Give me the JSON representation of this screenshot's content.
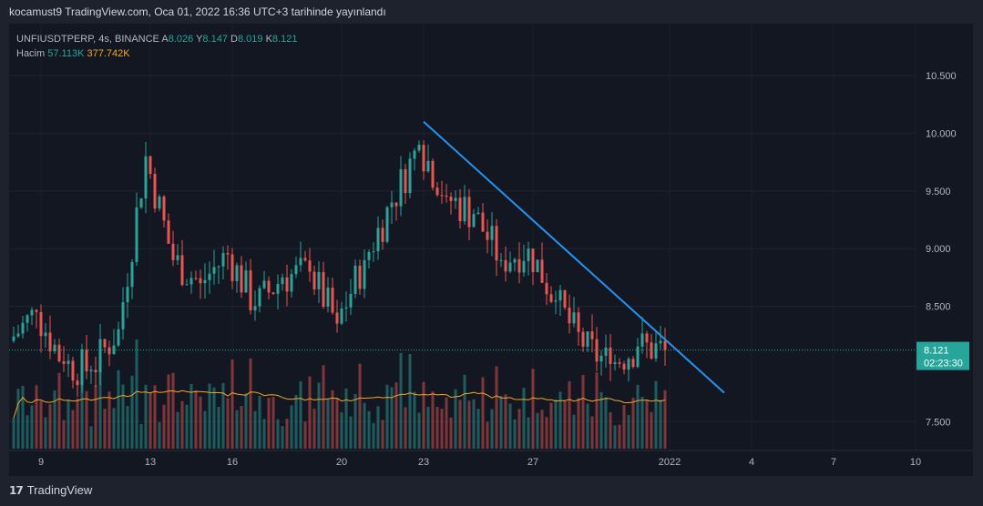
{
  "header": {
    "published": "kocamust9 TradingView.com, Oca 01, 2022 16:36 UTC+3 tarihinde yayınlandı"
  },
  "legend": {
    "symbol": "UNFIUSDTPERP, 4s, BINANCE",
    "o_label": "A",
    "o": "8.026",
    "h_label": "Y",
    "h": "8.147",
    "l_label": "D",
    "l": "8.019",
    "c_label": "K",
    "c": "8.121",
    "vol_label": "Hacim",
    "vol": "57.113K",
    "vol_ma": "377.742K"
  },
  "price_tag": {
    "price": "8.121",
    "countdown": "02:23:30"
  },
  "footer": {
    "brand": "TradingView"
  },
  "colors": {
    "up": "#26a69a",
    "down": "#ef5350",
    "trendline": "#2196f3",
    "vol_ma": "#f5a623",
    "background": "#131722"
  },
  "chart_data": {
    "type": "candlestick",
    "symbol": "UNFIUSDTPERP",
    "interval": "4s",
    "exchange": "BINANCE",
    "ylim": [
      7.25,
      10.95
    ],
    "y_ticks": [
      "10.500",
      "10.000",
      "9.500",
      "9.000",
      "8.500",
      "7.500"
    ],
    "x_ticks": [
      "9",
      "13",
      "16",
      "20",
      "23",
      "27",
      "2022",
      "4",
      "7",
      "10"
    ],
    "x_tick_values": [
      "2021-12-09",
      "2021-12-13",
      "2021-12-16",
      "2021-12-20",
      "2021-12-23",
      "2021-12-27",
      "2022-01-01",
      "2022-01-04",
      "2022-01-07",
      "2022-01-10"
    ],
    "last_price": 8.121,
    "close_series": [
      {
        "date": "2021-12-08",
        "close": 8.2
      },
      {
        "date": "2021-12-09",
        "close": 8.45
      },
      {
        "date": "2021-12-10",
        "close": 8.0
      },
      {
        "date": "2021-12-11",
        "close": 7.95
      },
      {
        "date": "2021-12-12",
        "close": 8.3
      },
      {
        "date": "2021-12-13",
        "close": 9.8
      },
      {
        "date": "2021-12-14",
        "close": 8.9
      },
      {
        "date": "2021-12-15",
        "close": 8.7
      },
      {
        "date": "2021-12-16",
        "close": 8.95
      },
      {
        "date": "2021-12-17",
        "close": 8.5
      },
      {
        "date": "2021-12-18",
        "close": 8.75
      },
      {
        "date": "2021-12-19",
        "close": 8.8
      },
      {
        "date": "2021-12-20",
        "close": 8.35
      },
      {
        "date": "2021-12-21",
        "close": 8.9
      },
      {
        "date": "2021-12-22",
        "close": 9.4
      },
      {
        "date": "2021-12-23",
        "close": 9.9
      },
      {
        "date": "2021-12-24",
        "close": 9.45
      },
      {
        "date": "2021-12-25",
        "close": 9.3
      },
      {
        "date": "2021-12-26",
        "close": 8.9
      },
      {
        "date": "2021-12-27",
        "close": 9.0
      },
      {
        "date": "2021-12-28",
        "close": 8.55
      },
      {
        "date": "2021-12-29",
        "close": 8.15
      },
      {
        "date": "2021-12-30",
        "close": 8.0
      },
      {
        "date": "2021-12-31",
        "close": 8.15
      },
      {
        "date": "2022-01-01",
        "close": 8.121
      }
    ],
    "trendline": {
      "start": {
        "date": "2021-12-23",
        "price": 10.1
      },
      "end": {
        "date": "2022-01-03",
        "price": 7.75
      }
    },
    "volume_ma_label": "377.742K"
  }
}
